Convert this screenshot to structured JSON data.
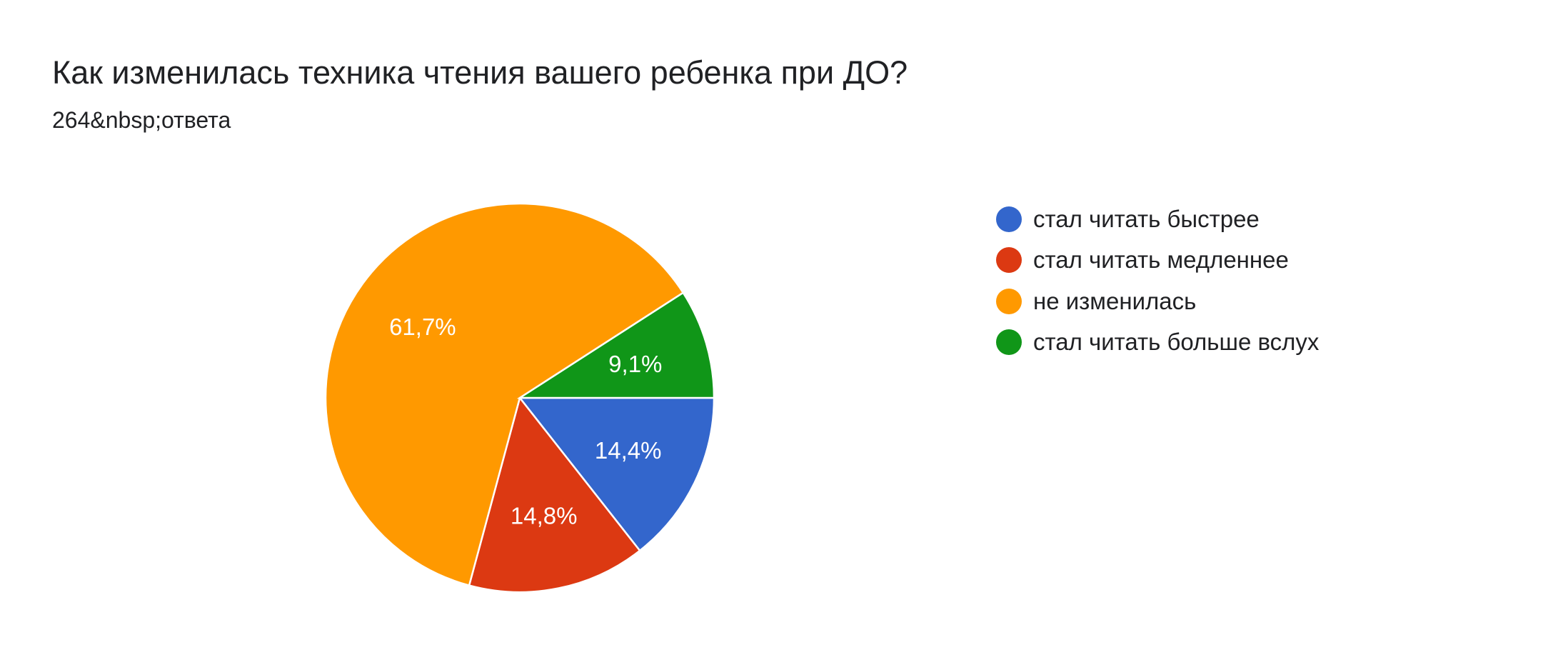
{
  "header": {
    "title": "Как изменилась техника чтения вашего ребенка при ДО?",
    "subtitle": "264&nbsp;ответа"
  },
  "chart_data": {
    "type": "pie",
    "title": "Как изменилась техника чтения вашего ребенка при ДО?",
    "total_responses": 264,
    "legend_position": "right",
    "slices": [
      {
        "label": "стал читать быстрее",
        "value": 14.4,
        "display": "14,4%",
        "color": "#3366cc"
      },
      {
        "label": "стал читать медленнее",
        "value": 14.8,
        "display": "14,8%",
        "color": "#dc3912"
      },
      {
        "label": "не изменилась",
        "value": 61.7,
        "display": "61,7%",
        "color": "#ff9900"
      },
      {
        "label": "стал читать больше вслух",
        "value": 9.1,
        "display": "9,1%",
        "color": "#109618"
      }
    ]
  }
}
